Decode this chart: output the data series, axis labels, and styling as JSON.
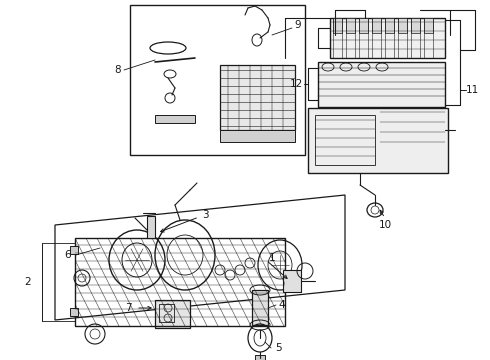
{
  "bg_color": "#ffffff",
  "lc": "#1a1a1a",
  "figsize": [
    4.9,
    3.6
  ],
  "dpi": 100,
  "xlim": [
    0,
    490
  ],
  "ylim": [
    0,
    360
  ]
}
